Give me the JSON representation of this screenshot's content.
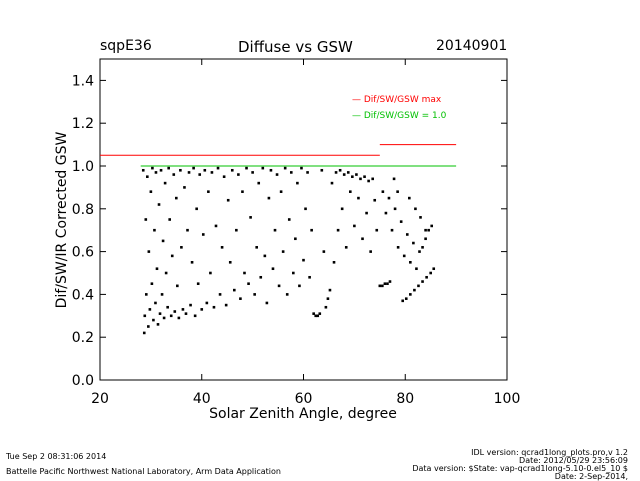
{
  "header": {
    "site": "sqpE36",
    "title": "Diffuse vs GSW",
    "date": "20140901"
  },
  "footer": {
    "timestamp": "Tue Sep  2 08:31:06 2014",
    "lab": "Battelle Pacific Northwest National Laboratory, Arm Data Application",
    "idl_version": "IDL version: qcrad1long_plots.pro,v 1.2",
    "idl_date": "Date: 2012/05/29 23:56:09",
    "data_version": "Data version: $State: vap-qcrad1long-5.10-0.el5_10 $",
    "data_date": "Date: 2-Sep-2014,"
  },
  "chart_data": {
    "type": "scatter",
    "title": "Diffuse vs GSW",
    "xlabel": "Solar Zenith Angle, degree",
    "ylabel": "Dif/SW/IR Corrected GSW",
    "xlim": [
      20,
      100
    ],
    "ylim": [
      0.0,
      1.5
    ],
    "xticks": [
      20,
      40,
      60,
      80,
      100
    ],
    "yticks": [
      0.0,
      0.2,
      0.4,
      0.6,
      0.8,
      1.0,
      1.2,
      1.4
    ],
    "colors": {
      "max": "#ff0000",
      "one": "#00c000",
      "points": "#000000"
    },
    "reference_lines": [
      {
        "name": "Dif/SW/GSW max",
        "color": "#ff0000",
        "segments": [
          [
            20,
            75,
            1.05
          ],
          [
            75,
            90,
            1.1
          ]
        ]
      },
      {
        "name": "Dif/SW/GSW = 1.0",
        "color": "#00c000",
        "segments": [
          [
            28,
            90,
            1.0
          ]
        ]
      }
    ],
    "legend": [
      {
        "label": "— Dif/SW/GSW max",
        "color": "#ff0000"
      },
      {
        "label": "— Dif/SW/GSW = 1.0",
        "color": "#00c000"
      }
    ],
    "legend_position": "top-right",
    "series": [
      {
        "name": "observations",
        "values": [
          [
            28.5,
            0.98
          ],
          [
            28.7,
            0.22
          ],
          [
            28.8,
            0.3
          ],
          [
            29.0,
            0.75
          ],
          [
            29.1,
            0.4
          ],
          [
            29.3,
            0.95
          ],
          [
            29.5,
            0.25
          ],
          [
            29.6,
            0.6
          ],
          [
            29.8,
            0.33
          ],
          [
            30.0,
            0.88
          ],
          [
            30.2,
            0.45
          ],
          [
            30.3,
            0.99
          ],
          [
            30.5,
            0.28
          ],
          [
            30.7,
            0.7
          ],
          [
            30.9,
            0.36
          ],
          [
            31.0,
            0.97
          ],
          [
            31.2,
            0.52
          ],
          [
            31.4,
            0.26
          ],
          [
            31.6,
            0.82
          ],
          [
            31.8,
            0.31
          ],
          [
            32.0,
            0.98
          ],
          [
            32.2,
            0.4
          ],
          [
            32.4,
            0.65
          ],
          [
            32.6,
            0.29
          ],
          [
            32.8,
            0.92
          ],
          [
            33.0,
            0.5
          ],
          [
            33.3,
            0.34
          ],
          [
            33.5,
            0.99
          ],
          [
            33.7,
            0.75
          ],
          [
            34.0,
            0.3
          ],
          [
            34.2,
            0.58
          ],
          [
            34.5,
            0.96
          ],
          [
            34.7,
            0.32
          ],
          [
            35.0,
            0.85
          ],
          [
            35.2,
            0.44
          ],
          [
            35.5,
            0.29
          ],
          [
            35.8,
            0.98
          ],
          [
            36.0,
            0.62
          ],
          [
            36.3,
            0.33
          ],
          [
            36.6,
            0.9
          ],
          [
            36.9,
            0.31
          ],
          [
            37.2,
            0.7
          ],
          [
            37.5,
            0.97
          ],
          [
            37.8,
            0.35
          ],
          [
            38.1,
            0.55
          ],
          [
            38.4,
            0.99
          ],
          [
            38.7,
            0.3
          ],
          [
            39.0,
            0.8
          ],
          [
            39.3,
            0.45
          ],
          [
            39.6,
            0.96
          ],
          [
            40.0,
            0.33
          ],
          [
            40.3,
            0.68
          ],
          [
            40.6,
            0.98
          ],
          [
            41.0,
            0.36
          ],
          [
            41.3,
            0.88
          ],
          [
            41.7,
            0.5
          ],
          [
            42.0,
            0.97
          ],
          [
            42.4,
            0.34
          ],
          [
            42.8,
            0.72
          ],
          [
            43.2,
            0.99
          ],
          [
            43.6,
            0.4
          ],
          [
            44.0,
            0.62
          ],
          [
            44.4,
            0.95
          ],
          [
            44.8,
            0.35
          ],
          [
            45.2,
            0.84
          ],
          [
            45.6,
            0.55
          ],
          [
            46.0,
            0.98
          ],
          [
            46.4,
            0.42
          ],
          [
            46.8,
            0.7
          ],
          [
            47.2,
            0.96
          ],
          [
            47.6,
            0.38
          ],
          [
            48.0,
            0.88
          ],
          [
            48.4,
            0.5
          ],
          [
            48.8,
            0.99
          ],
          [
            49.2,
            0.45
          ],
          [
            49.6,
            0.76
          ],
          [
            50.0,
            0.97
          ],
          [
            50.4,
            0.4
          ],
          [
            50.8,
            0.62
          ],
          [
            51.2,
            0.92
          ],
          [
            51.6,
            0.48
          ],
          [
            52.0,
            0.99
          ],
          [
            52.4,
            0.58
          ],
          [
            52.8,
            0.36
          ],
          [
            53.2,
            0.85
          ],
          [
            53.6,
            0.98
          ],
          [
            54.0,
            0.52
          ],
          [
            54.4,
            0.7
          ],
          [
            54.8,
            0.96
          ],
          [
            55.2,
            0.44
          ],
          [
            55.6,
            0.88
          ],
          [
            56.0,
            0.6
          ],
          [
            56.4,
            0.99
          ],
          [
            56.8,
            0.4
          ],
          [
            57.2,
            0.75
          ],
          [
            57.6,
            0.97
          ],
          [
            58.0,
            0.5
          ],
          [
            58.4,
            0.66
          ],
          [
            58.8,
            0.92
          ],
          [
            59.2,
            0.44
          ],
          [
            59.6,
            0.99
          ],
          [
            60.0,
            0.56
          ],
          [
            60.4,
            0.8
          ],
          [
            60.8,
            0.97
          ],
          [
            61.2,
            0.48
          ],
          [
            61.6,
            0.7
          ],
          [
            62.0,
            0.31
          ],
          [
            62.4,
            0.3
          ],
          [
            62.8,
            0.3
          ],
          [
            63.2,
            0.31
          ],
          [
            63.6,
            0.98
          ],
          [
            64.0,
            0.6
          ],
          [
            64.4,
            0.34
          ],
          [
            64.8,
            0.38
          ],
          [
            65.2,
            0.42
          ],
          [
            65.6,
            0.92
          ],
          [
            66.0,
            0.55
          ],
          [
            66.4,
            0.97
          ],
          [
            66.8,
            0.7
          ],
          [
            67.2,
            0.98
          ],
          [
            67.6,
            0.8
          ],
          [
            68.0,
            0.96
          ],
          [
            68.4,
            0.62
          ],
          [
            68.8,
            0.97
          ],
          [
            69.2,
            0.88
          ],
          [
            69.6,
            0.95
          ],
          [
            70.0,
            0.72
          ],
          [
            70.4,
            0.96
          ],
          [
            70.8,
            0.85
          ],
          [
            71.2,
            0.94
          ],
          [
            71.6,
            0.66
          ],
          [
            72.0,
            0.95
          ],
          [
            72.4,
            0.78
          ],
          [
            72.8,
            0.93
          ],
          [
            73.2,
            0.6
          ],
          [
            73.6,
            0.94
          ],
          [
            74.0,
            0.84
          ],
          [
            74.4,
            0.7
          ],
          [
            75.0,
            0.44
          ],
          [
            75.5,
            0.44
          ],
          [
            76.0,
            0.45
          ],
          [
            76.5,
            0.45
          ],
          [
            77.0,
            0.46
          ],
          [
            75.6,
            0.88
          ],
          [
            76.2,
            0.78
          ],
          [
            76.8,
            0.85
          ],
          [
            77.4,
            0.7
          ],
          [
            78.0,
            0.8
          ],
          [
            78.6,
            0.62
          ],
          [
            79.2,
            0.74
          ],
          [
            79.8,
            0.58
          ],
          [
            80.4,
            0.68
          ],
          [
            81.0,
            0.55
          ],
          [
            81.6,
            0.64
          ],
          [
            82.2,
            0.52
          ],
          [
            82.8,
            0.6
          ],
          [
            83.4,
            0.62
          ],
          [
            84.0,
            0.66
          ],
          [
            84.6,
            0.7
          ],
          [
            85.2,
            0.72
          ],
          [
            79.5,
            0.37
          ],
          [
            80.2,
            0.38
          ],
          [
            81.0,
            0.4
          ],
          [
            81.8,
            0.42
          ],
          [
            82.6,
            0.44
          ],
          [
            83.4,
            0.46
          ],
          [
            84.2,
            0.48
          ],
          [
            85.0,
            0.5
          ],
          [
            85.6,
            0.52
          ],
          [
            80.8,
            0.85
          ],
          [
            82.0,
            0.8
          ],
          [
            83.0,
            0.76
          ],
          [
            84.0,
            0.7
          ],
          [
            78.5,
            0.88
          ],
          [
            77.8,
            0.94
          ]
        ]
      }
    ]
  }
}
